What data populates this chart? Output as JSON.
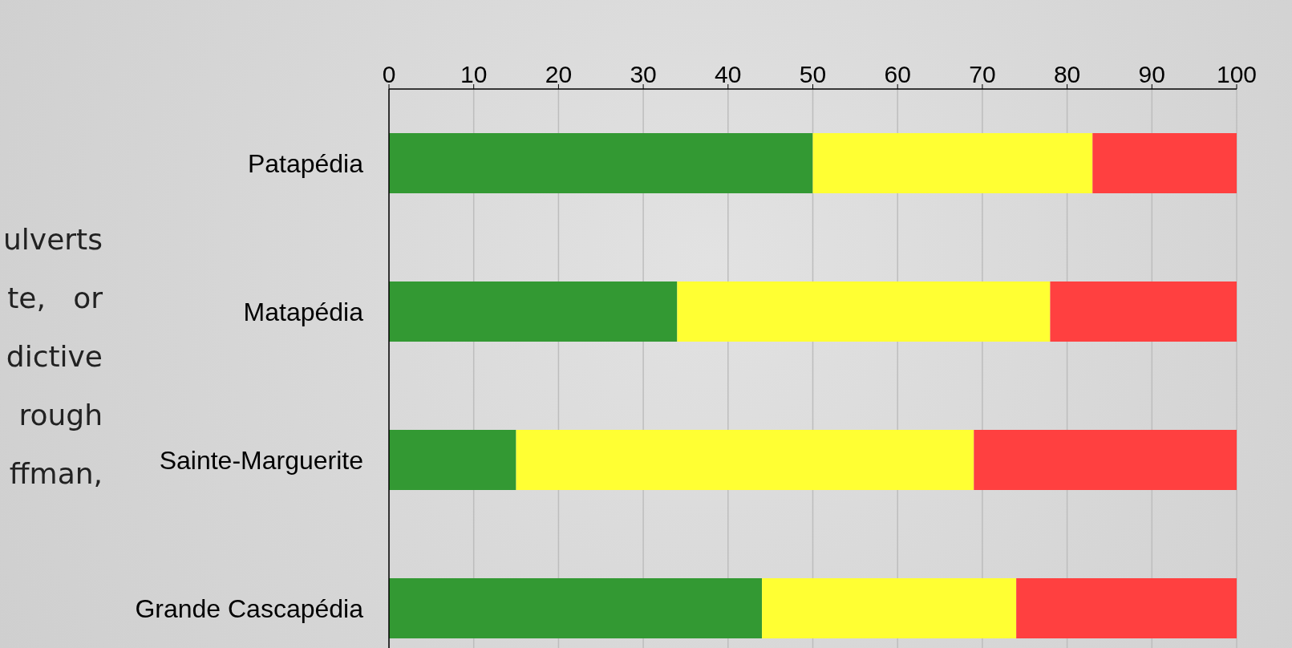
{
  "chart_data": {
    "type": "bar",
    "orientation": "horizontal",
    "stacked": true,
    "categories": [
      "Patapédia",
      "Matapédia",
      "Sainte-Marguerite",
      "Grande Cascapédia"
    ],
    "series": [
      {
        "color": "#339933",
        "values": [
          50,
          34,
          15,
          44
        ]
      },
      {
        "color": "#ffff33",
        "values": [
          33,
          44,
          54,
          30
        ]
      },
      {
        "color": "#ff4040",
        "values": [
          17,
          22,
          31,
          26
        ]
      }
    ],
    "xlim": [
      0,
      100
    ],
    "xticks": [
      0,
      10,
      20,
      30,
      40,
      50,
      60,
      70,
      80,
      90,
      100
    ],
    "grid": "x",
    "annotations": [
      "ulverts",
      "te,   or",
      "dictive",
      "rough",
      "ffman,"
    ]
  }
}
